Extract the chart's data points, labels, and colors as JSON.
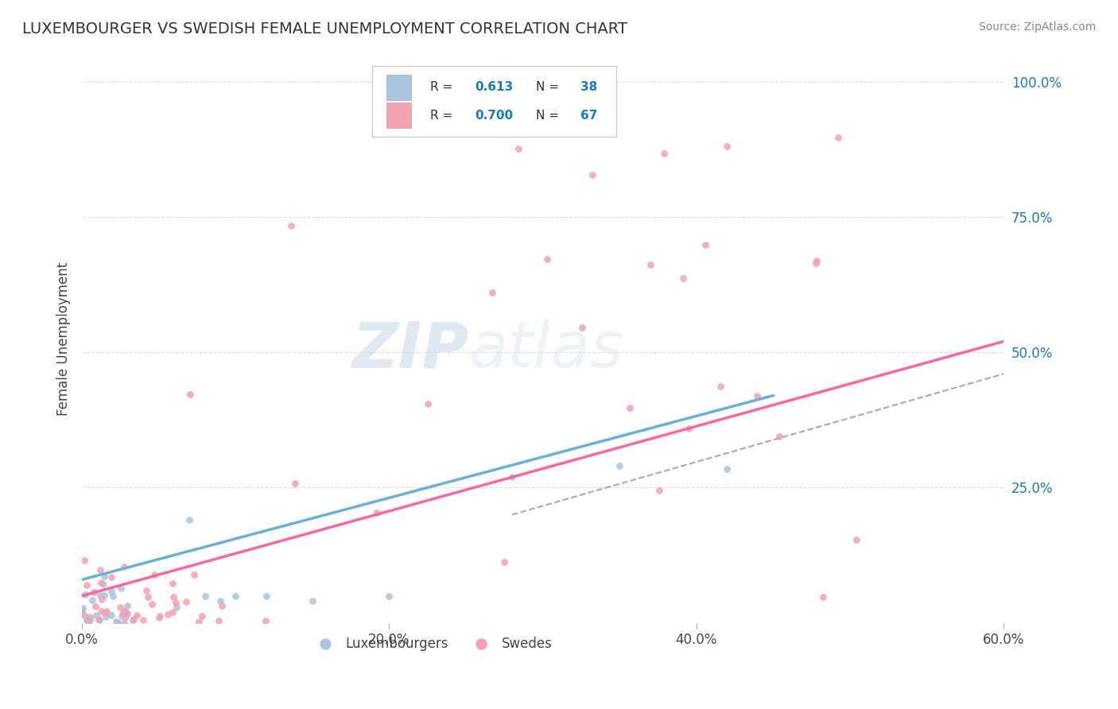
{
  "title": "LUXEMBOURGER VS SWEDISH FEMALE UNEMPLOYMENT CORRELATION CHART",
  "source": "Source: ZipAtlas.com",
  "ylabel": "Female Unemployment",
  "xlim": [
    0.0,
    0.6
  ],
  "ylim": [
    0.0,
    1.05
  ],
  "xtick_labels": [
    "0.0%",
    "20.0%",
    "40.0%",
    "60.0%"
  ],
  "xtick_positions": [
    0.0,
    0.2,
    0.4,
    0.6
  ],
  "ytick_labels": [
    "25.0%",
    "50.0%",
    "75.0%",
    "100.0%"
  ],
  "ytick_positions": [
    0.25,
    0.5,
    0.75,
    1.0
  ],
  "legend_val1": "0.613",
  "legend_count1": "38",
  "legend_val2": "0.700",
  "legend_count2": "67",
  "color_lux": "#a8c4e0",
  "color_swe": "#f4a0b0",
  "color_lux_line": "#6baed6",
  "color_swe_line": "#f768a1",
  "color_dashed_line": "#aaaaaa",
  "lux_line_x": [
    0.0,
    0.45
  ],
  "lux_line_y": [
    0.08,
    0.42
  ],
  "swe_line_x": [
    0.0,
    0.6
  ],
  "swe_line_y": [
    0.05,
    0.52
  ],
  "dash_line_x": [
    0.28,
    0.6
  ],
  "dash_line_y": [
    0.2,
    0.46
  ],
  "background_color": "#ffffff",
  "grid_color": "#dddddd",
  "blue_text_color": "#1a7abf",
  "dark_text_color": "#333333",
  "label_text_color": "#444444"
}
